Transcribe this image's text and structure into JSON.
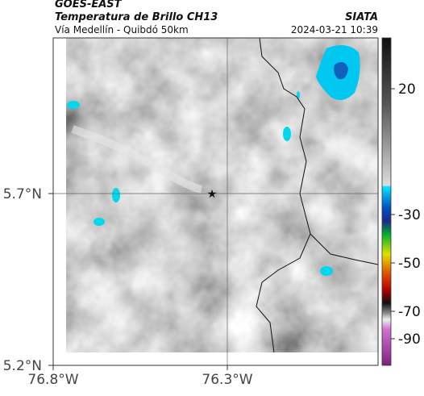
{
  "header": {
    "source": "GOES-EAST",
    "product": "Temperatura de Brillo CH13",
    "agency": "SIATA",
    "route": "Vía Medellín - Quibdó 50km",
    "timestamp": "2024-03-21 10:39"
  },
  "map": {
    "lat_ticks": [
      "5.7°N",
      "5.2°N"
    ],
    "lon_ticks": [
      "76.8°W",
      "76.3°W"
    ]
  },
  "colorbar": {
    "ticks": [
      "20",
      "-30",
      "-50",
      "-70",
      "-90"
    ]
  }
}
